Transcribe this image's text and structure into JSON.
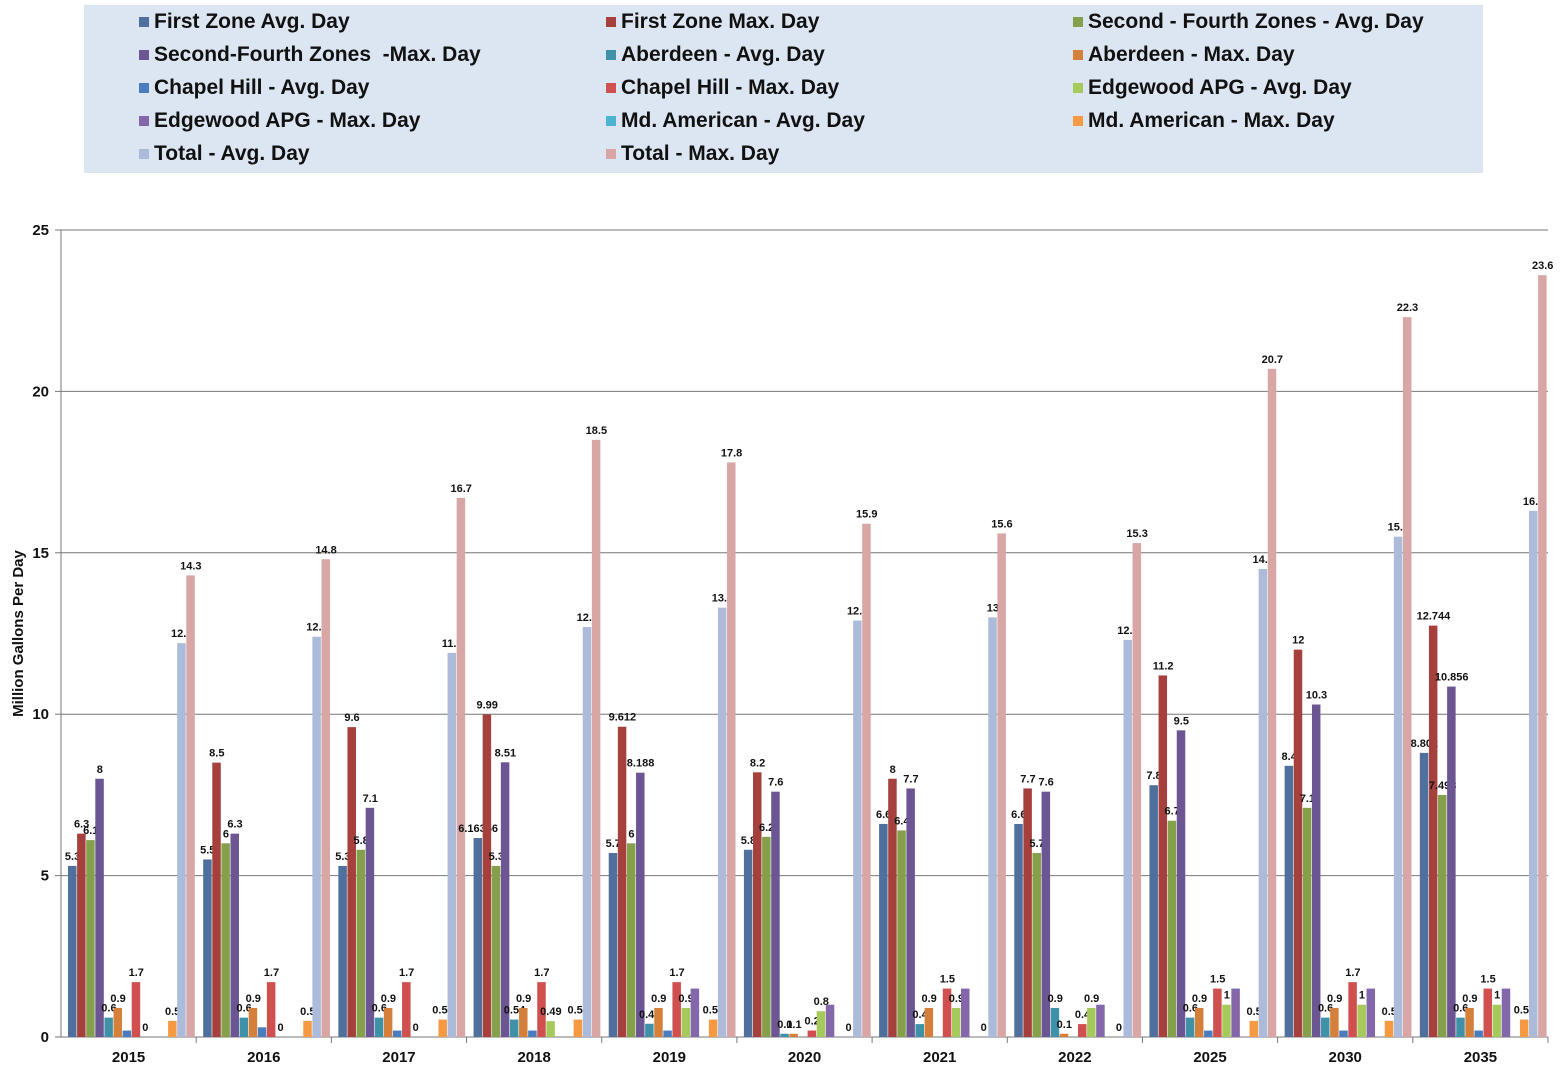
{
  "chart_data": {
    "type": "bar",
    "title": "",
    "xlabel": "",
    "ylabel": "Million Gallons Per Day",
    "ylim": [
      0,
      25
    ],
    "yticks": [
      0,
      5,
      10,
      15,
      20,
      25
    ],
    "grid": true,
    "legend_position": "top",
    "categories": [
      "2015",
      "2016",
      "2017",
      "2018",
      "2019",
      "2020",
      "2021",
      "2022",
      "2025",
      "2030",
      "2035"
    ],
    "series": [
      {
        "name": "First Zone Avg. Day",
        "color": "#4f6f9d",
        "values": [
          5.3,
          5.5,
          5.3,
          6.16356,
          5.7,
          5.8,
          6.6,
          6.6,
          7.8,
          8.4,
          8.802
        ],
        "labels": [
          "5.3",
          "5.5",
          "5.3",
          "6.16356",
          "5.7",
          "5.8",
          "6.6",
          "6.6",
          "7.8",
          "8.4",
          "8.802"
        ]
      },
      {
        "name": "First Zone Max. Day",
        "color": "#a5403c",
        "values": [
          6.3,
          8.5,
          9.6,
          9.99,
          9.612,
          8.2,
          8.0,
          7.7,
          11.2,
          12.0,
          12.744
        ],
        "labels": [
          "6.3",
          "8.5",
          "9.6",
          "9.99",
          "9.612",
          "8.2",
          "8",
          "7.7",
          "11.2",
          "12",
          "12.744"
        ]
      },
      {
        "name": "Second - Fourth Zones - Avg. Day",
        "color": "#85a04b",
        "values": [
          6.1,
          6.0,
          5.8,
          5.3,
          6.0,
          6.2,
          6.4,
          5.7,
          6.7,
          7.1,
          7.498
        ],
        "labels": [
          "6.1",
          "6",
          "5.8",
          "5.3",
          "6",
          "6.2",
          "6.4",
          "5.7",
          "6.7",
          "7.1",
          "7.498"
        ]
      },
      {
        "name": "Second-Fourth Zones  -Max. Day",
        "color": "#6c5593",
        "values": [
          8.0,
          6.3,
          7.1,
          8.51,
          8.188,
          7.6,
          7.7,
          7.6,
          9.5,
          10.3,
          10.856
        ],
        "labels": [
          "8",
          "6.3",
          "7.1",
          "8.51",
          "8.188",
          "7.6",
          "7.7",
          "7.6",
          "9.5",
          "10.3",
          "10.856"
        ]
      },
      {
        "name": "Aberdeen - Avg. Day",
        "color": "#3e91a7",
        "values": [
          0.6,
          0.6,
          0.6,
          0.54,
          0.41,
          0.1,
          0.4,
          0.9,
          0.6,
          0.6,
          0.6
        ],
        "labels": [
          "0.6",
          "0.6",
          "0.6",
          "0.54",
          "0.41",
          "0.1",
          "0.4",
          "0.9",
          "0.6",
          "0.6",
          "0.6"
        ]
      },
      {
        "name": "Aberdeen - Max. Day",
        "color": "#d5803a",
        "values": [
          0.9,
          0.9,
          0.9,
          0.9,
          0.9,
          0.1,
          0.9,
          0.1,
          0.9,
          0.9,
          0.9
        ],
        "labels": [
          "0.9",
          "0.9",
          "0.9",
          "0.9",
          "0.9",
          "0.1",
          "0.9",
          "0.1",
          "0.9",
          "0.9",
          "0.9"
        ]
      },
      {
        "name": "Chapel Hill - Avg. Day",
        "color": "#4a7cc0",
        "values": [
          0.2,
          0.3,
          0.2,
          0.2,
          0.2,
          0.0,
          0.0,
          0.0,
          0.2,
          0.2,
          0.2
        ],
        "labels": [
          "",
          "",
          "",
          "",
          "",
          "",
          "",
          "",
          "",
          "",
          ""
        ]
      },
      {
        "name": "Chapel Hill - Max. Day",
        "color": "#cf504e",
        "values": [
          1.7,
          1.7,
          1.7,
          1.7,
          1.7,
          0.2,
          1.5,
          0.4,
          1.5,
          1.7,
          1.5
        ],
        "labels": [
          "1.7",
          "1.7",
          "1.7",
          "1.7",
          "1.7",
          "0.2",
          "1.5",
          "0.4",
          "1.5",
          "1.7",
          "1.5"
        ]
      },
      {
        "name": "Edgewood APG - Avg. Day",
        "color": "#a6c95b",
        "values": [
          0.0,
          0.0,
          0.0,
          0.49,
          0.9,
          0.8,
          0.9,
          0.9,
          1.0,
          1.0,
          1.0
        ],
        "labels": [
          "0",
          "0",
          "0",
          "0.49",
          "0.9",
          "0.8",
          "0.9",
          "0.9",
          "1",
          "1",
          "1"
        ]
      },
      {
        "name": "Edgewood APG - Max. Day",
        "color": "#8466ab",
        "values": [
          0.0,
          0.0,
          0.0,
          0.0,
          1.5,
          1.0,
          1.5,
          1.0,
          1.5,
          1.5,
          1.5
        ],
        "labels": [
          "",
          "",
          "",
          "",
          "",
          "",
          "",
          "",
          "",
          "",
          ""
        ]
      },
      {
        "name": "Md. American - Avg. Day",
        "color": "#4db4cf",
        "values": [
          0.0,
          0.0,
          0.0,
          0.0,
          0.0,
          0.0,
          0.0,
          0.0,
          0.0,
          0.0,
          0.0
        ],
        "labels": [
          "",
          "",
          "",
          "",
          "",
          "",
          "",
          "",
          "",
          "",
          ""
        ]
      },
      {
        "name": "Md. American - Max. Day",
        "color": "#f59a43",
        "values": [
          0.5,
          0.5,
          0.54,
          0.54,
          0.54,
          0.0,
          0.0,
          0.0,
          0.5,
          0.5,
          0.54
        ],
        "labels": [
          "0.5",
          "0.5",
          "0.54",
          "0.54",
          "0.54",
          "0",
          "0",
          "0",
          "0.5",
          "0.5",
          "0.54"
        ]
      },
      {
        "name": "Total - Avg. Day",
        "color": "#abbbd9",
        "values": [
          12.2,
          12.4,
          11.9,
          12.7,
          13.3,
          12.9,
          13.0,
          12.3,
          14.5,
          15.5,
          16.3
        ],
        "labels": [
          "12.2",
          "12.4",
          "11.9",
          "12.7",
          "13.3",
          "12.9",
          "13",
          "12.3",
          "14.5",
          "15.5",
          "16.3"
        ]
      },
      {
        "name": "Total - Max. Day",
        "color": "#d9a6a6",
        "values": [
          14.3,
          14.8,
          16.7,
          18.5,
          17.8,
          15.9,
          15.6,
          15.3,
          20.7,
          22.3,
          23.6
        ],
        "labels": [
          "14.3",
          "14.8",
          "16.7",
          "18.5",
          "17.8",
          "15.9",
          "15.6",
          "15.3",
          "20.7",
          "22.3",
          "23.6"
        ]
      }
    ]
  }
}
